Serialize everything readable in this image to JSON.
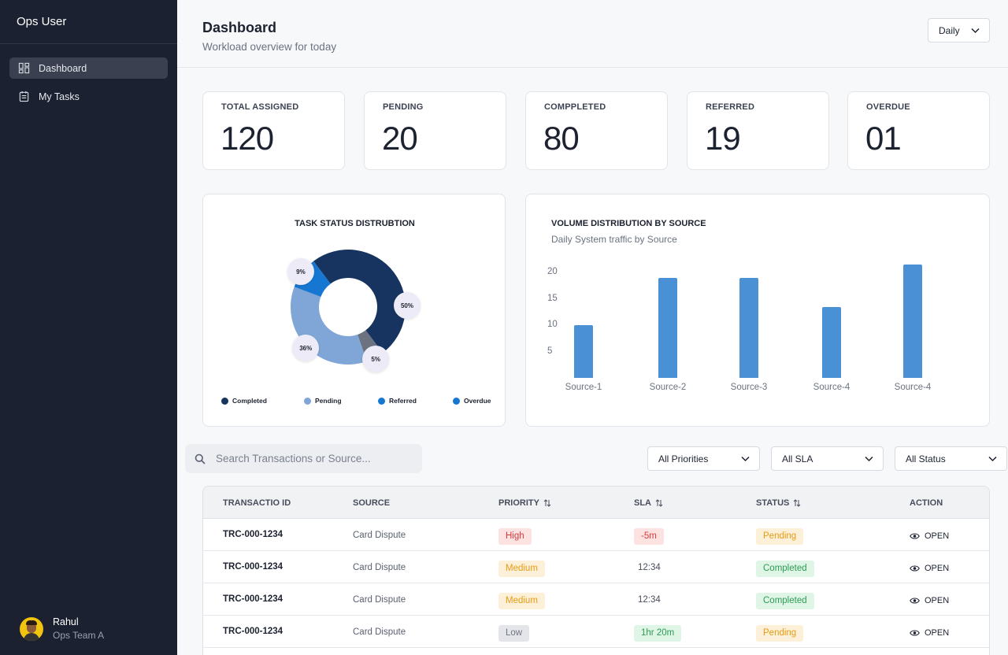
{
  "sidebar": {
    "app_title": "Ops User",
    "items": [
      {
        "label": "Dashboard",
        "icon": "dashboard-icon",
        "active": true
      },
      {
        "label": "My Tasks",
        "icon": "tasks-icon",
        "active": false
      }
    ],
    "user": {
      "name": "Rahul",
      "team": "Ops Team A"
    }
  },
  "header": {
    "title": "Dashboard",
    "subtitle": "Workload overview for today",
    "period": "Daily"
  },
  "stats": [
    {
      "label": "TOTAL ASSIGNED",
      "value": "120"
    },
    {
      "label": "PENDING",
      "value": "20"
    },
    {
      "label": "COMPPLETED",
      "value": "80"
    },
    {
      "label": "REFERRED",
      "value": "19"
    },
    {
      "label": "OVERDUE",
      "value": "01"
    }
  ],
  "chart_data": [
    {
      "type": "pie",
      "title": "TASK STATUS DISTRUBTION",
      "donut": true,
      "slices": [
        {
          "name": "Completed",
          "value": 50,
          "label": "50%",
          "color": "#173460"
        },
        {
          "name": "Pending",
          "value": 36,
          "label": "36%",
          "color": "#7fa6d6"
        },
        {
          "name": "Referred",
          "value": 9,
          "label": "9%",
          "color": "#1677d2"
        },
        {
          "name": "Overdue",
          "value": 5,
          "label": "5%",
          "color": "#6b7280"
        }
      ],
      "legend": [
        {
          "name": "Completed",
          "color": "#173460"
        },
        {
          "name": "Pending",
          "color": "#7fa6d6"
        },
        {
          "name": "Referred",
          "color": "#1677d2"
        },
        {
          "name": "Overdue",
          "color": "#1677d2"
        }
      ],
      "legend_position": "bottom"
    },
    {
      "type": "bar",
      "title": "VOLUME DISTRIBUTION BY SOURCE",
      "subtitle": "Daily System traffic by Source",
      "categories": [
        "Source-1",
        "Source-2",
        "Source-3",
        "Source-4",
        "Source-4"
      ],
      "values": [
        10,
        19,
        19,
        13.5,
        21.5
      ],
      "yticks": [
        5,
        10,
        15,
        20
      ],
      "ylim": [
        0,
        20
      ],
      "color": "#4a90d4",
      "grid": false
    }
  ],
  "filters": {
    "search_placeholder": "Search Transactions or Source...",
    "priority": "All Priorities",
    "sla": "All SLA",
    "status": "All Status"
  },
  "table": {
    "headers": {
      "id": "TRANSACTIO ID",
      "source": "SOURCE",
      "priority": "PRIORITY",
      "sla": "SLA",
      "status": "STATUS",
      "action": "ACTION"
    },
    "rows": [
      {
        "id": "TRC-000-1234",
        "source": "Card Dispute",
        "priority": "High",
        "sla": "-5m",
        "sla_style": "bad",
        "status": "Pending",
        "action": "OPEN"
      },
      {
        "id": "TRC-000-1234",
        "source": "Card Dispute",
        "priority": "Medium",
        "sla": "12:34",
        "sla_style": "plain",
        "status": "Completed",
        "action": "OPEN"
      },
      {
        "id": "TRC-000-1234",
        "source": "Card Dispute",
        "priority": "Medium",
        "sla": "12:34",
        "sla_style": "plain",
        "status": "Completed",
        "action": "OPEN"
      },
      {
        "id": "TRC-000-1234",
        "source": "Card Dispute",
        "priority": "Low",
        "sla": "1hr 20m",
        "sla_style": "good",
        "status": "Pending",
        "action": "OPEN"
      }
    ]
  }
}
